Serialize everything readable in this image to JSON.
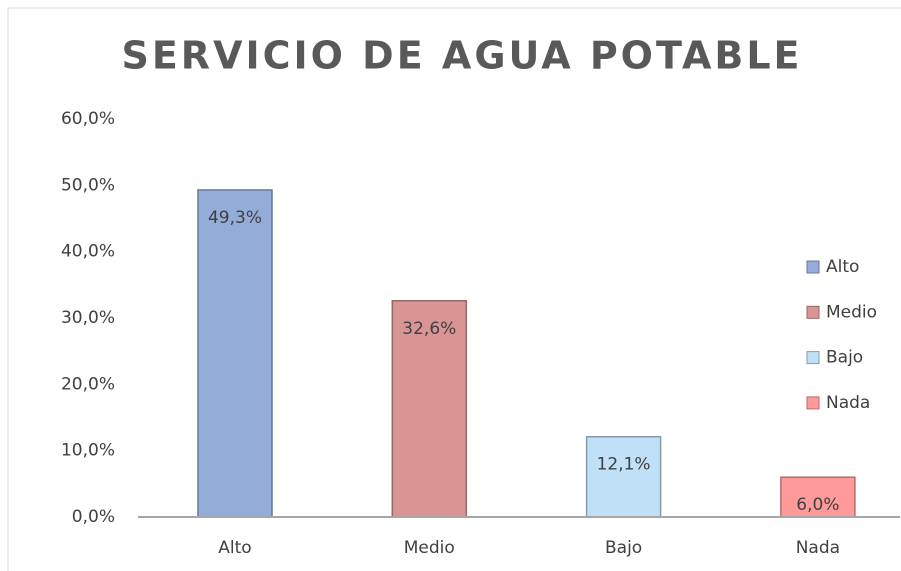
{
  "chart_data": {
    "type": "bar",
    "title": "SERVICIO DE AGUA POTABLE",
    "categories": [
      "Alto",
      "Medio",
      "Bajo",
      "Nada"
    ],
    "values": [
      49.3,
      32.6,
      12.1,
      6.0
    ],
    "value_labels": [
      "49,3%",
      "32,6%",
      "12,1%",
      "6,0%"
    ],
    "colors": [
      "#94acd8",
      "#d99594",
      "#bfe0f7",
      "#ff9a9a"
    ],
    "legend": "right",
    "ylim": [
      0,
      60
    ],
    "yticks": [
      {
        "value": 0,
        "label": "0,0%"
      },
      {
        "value": 10,
        "label": "10,0%"
      },
      {
        "value": 20,
        "label": "20,0%"
      },
      {
        "value": 30,
        "label": "30,0%"
      },
      {
        "value": 40,
        "label": "40,0%"
      },
      {
        "value": 50,
        "label": "50,0%"
      },
      {
        "value": 60,
        "label": "60,0%"
      }
    ],
    "grid": false
  }
}
